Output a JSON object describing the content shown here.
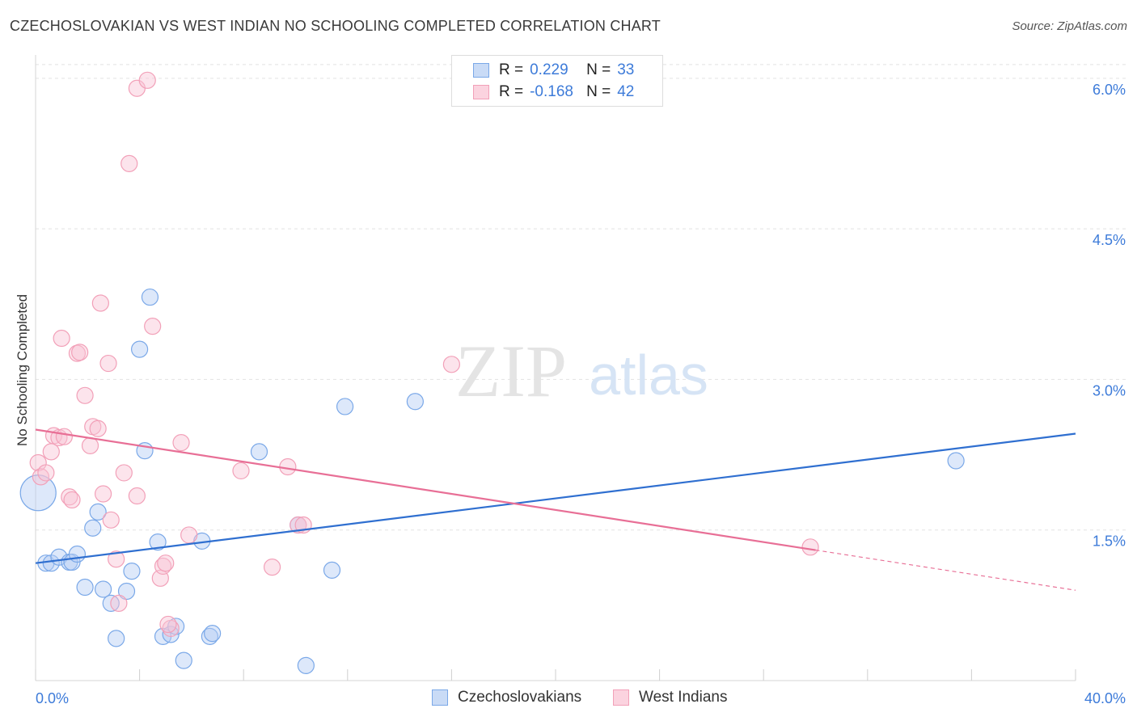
{
  "title": "CZECHOSLOVAKIAN VS WEST INDIAN NO SCHOOLING COMPLETED CORRELATION CHART",
  "source": "Source: ZipAtlas.com",
  "watermark": {
    "zip": "ZIP",
    "atlas": "atlas"
  },
  "legend": {
    "rows": [
      {
        "r_label": "R =",
        "r_value": "0.229",
        "n_label": "N =",
        "n_value": "33",
        "color": "#7aa8e8"
      },
      {
        "r_label": "R =",
        "r_value": "-0.168",
        "n_label": "N =",
        "n_value": "42",
        "color": "#f2a0b8"
      }
    ]
  },
  "bottom_legend": {
    "czech": "Czechoslovakians",
    "westindian": "West Indians"
  },
  "chart_data": {
    "type": "scatter",
    "title": "CZECHOSLOVAKIAN VS WEST INDIAN NO SCHOOLING COMPLETED CORRELATION CHART",
    "xlabel": "",
    "ylabel": "No Schooling Completed",
    "xlim": [
      0,
      40
    ],
    "ylim": [
      0,
      6.2
    ],
    "x_tick_labels": [
      "0.0%",
      "40.0%"
    ],
    "y_ticks": [
      {
        "value": 1.5,
        "label": "1.5%"
      },
      {
        "value": 3.0,
        "label": "3.0%"
      },
      {
        "value": 4.5,
        "label": "4.5%"
      },
      {
        "value": 6.0,
        "label": "6.0%"
      }
    ],
    "grid": true,
    "legend_position": "top-center",
    "series": [
      {
        "name": "Czechoslovakians",
        "color": "#7aa8e8",
        "line_color": "#2f6fd0",
        "trend": {
          "x": [
            0,
            40
          ],
          "y": [
            1.17,
            2.46
          ],
          "dashed_from": null
        },
        "points": [
          [
            0.1,
            1.87
          ],
          [
            0.4,
            1.17
          ],
          [
            0.6,
            1.17
          ],
          [
            0.9,
            1.23
          ],
          [
            1.3,
            1.18
          ],
          [
            1.4,
            1.18
          ],
          [
            1.6,
            1.26
          ],
          [
            1.9,
            0.93
          ],
          [
            2.2,
            1.52
          ],
          [
            2.4,
            1.68
          ],
          [
            2.6,
            0.91
          ],
          [
            2.9,
            0.77
          ],
          [
            3.1,
            0.42
          ],
          [
            3.5,
            0.89
          ],
          [
            3.7,
            1.09
          ],
          [
            4.0,
            3.3
          ],
          [
            4.2,
            2.29
          ],
          [
            4.4,
            3.82
          ],
          [
            4.7,
            1.38
          ],
          [
            4.9,
            0.44
          ],
          [
            5.2,
            0.46
          ],
          [
            5.4,
            0.54
          ],
          [
            5.7,
            0.2
          ],
          [
            6.4,
            1.39
          ],
          [
            6.7,
            0.44
          ],
          [
            6.8,
            0.47
          ],
          [
            8.6,
            2.28
          ],
          [
            10.1,
            1.55
          ],
          [
            10.4,
            0.15
          ],
          [
            11.4,
            1.1
          ],
          [
            11.9,
            2.73
          ],
          [
            14.6,
            2.78
          ],
          [
            35.4,
            2.19
          ]
        ],
        "sizes": [
          22,
          10,
          10,
          10,
          10,
          10,
          10,
          10,
          10,
          10,
          10,
          10,
          10,
          10,
          10,
          10,
          10,
          10,
          10,
          10,
          10,
          10,
          10,
          10,
          10,
          10,
          10,
          10,
          10,
          10,
          10,
          10,
          10
        ]
      },
      {
        "name": "West Indians",
        "color": "#f2a0b8",
        "line_color": "#e86f96",
        "trend": {
          "x": [
            0,
            40
          ],
          "y": [
            2.5,
            0.9
          ],
          "dashed_from": 30.0
        },
        "points": [
          [
            0.1,
            2.17
          ],
          [
            0.2,
            2.03
          ],
          [
            0.4,
            2.07
          ],
          [
            0.6,
            2.28
          ],
          [
            0.7,
            2.44
          ],
          [
            0.9,
            2.42
          ],
          [
            1.0,
            3.41
          ],
          [
            1.1,
            2.43
          ],
          [
            1.3,
            1.83
          ],
          [
            1.4,
            1.8
          ],
          [
            1.6,
            3.26
          ],
          [
            1.7,
            3.27
          ],
          [
            1.9,
            2.84
          ],
          [
            2.1,
            2.34
          ],
          [
            2.2,
            2.53
          ],
          [
            2.4,
            2.51
          ],
          [
            2.5,
            3.76
          ],
          [
            2.6,
            1.86
          ],
          [
            2.8,
            3.16
          ],
          [
            2.9,
            1.6
          ],
          [
            3.1,
            1.21
          ],
          [
            3.2,
            0.77
          ],
          [
            3.4,
            2.07
          ],
          [
            3.6,
            5.15
          ],
          [
            3.9,
            5.9
          ],
          [
            3.9,
            1.84
          ],
          [
            4.3,
            5.98
          ],
          [
            4.5,
            3.53
          ],
          [
            4.8,
            1.02
          ],
          [
            4.9,
            1.14
          ],
          [
            5.0,
            1.17
          ],
          [
            5.2,
            0.52
          ],
          [
            5.6,
            2.37
          ],
          [
            5.9,
            1.45
          ],
          [
            7.9,
            2.09
          ],
          [
            9.1,
            1.13
          ],
          [
            9.7,
            2.13
          ],
          [
            10.1,
            1.55
          ],
          [
            10.3,
            1.55
          ],
          [
            16.0,
            3.15
          ],
          [
            29.8,
            1.33
          ],
          [
            5.1,
            0.56
          ]
        ],
        "sizes": [
          10,
          10,
          10,
          10,
          10,
          10,
          10,
          10,
          10,
          10,
          10,
          10,
          10,
          10,
          10,
          10,
          10,
          10,
          10,
          10,
          10,
          10,
          10,
          10,
          10,
          10,
          10,
          10,
          10,
          10,
          10,
          10,
          10,
          10,
          10,
          10,
          10,
          10,
          10,
          10,
          10,
          10
        ]
      }
    ]
  }
}
